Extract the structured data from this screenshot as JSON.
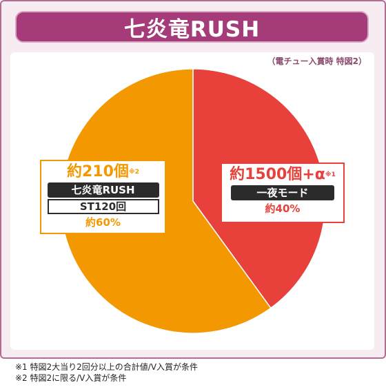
{
  "title": "七炎竜RUSH",
  "subtitle": "（電チュー入賞時 特図2）",
  "chart_data": {
    "type": "pie",
    "title": "七炎竜RUSH",
    "slices": [
      {
        "label": "約1500個+α",
        "note_mark": "※1",
        "tag": "一夜モード",
        "percent_label": "約40%",
        "value": 40,
        "color": "#e8403a"
      },
      {
        "label": "約210個",
        "note_mark": "※2",
        "tag": "七炎竜RUSH",
        "subtag": "ST120回",
        "percent_label": "約60%",
        "value": 60,
        "color": "#f39800"
      }
    ],
    "legend": "none"
  },
  "notes": [
    "※1 特図2大当り2回分以上の合計値/V入賞が条件",
    "※2 特図2に限る/V入賞が条件"
  ]
}
